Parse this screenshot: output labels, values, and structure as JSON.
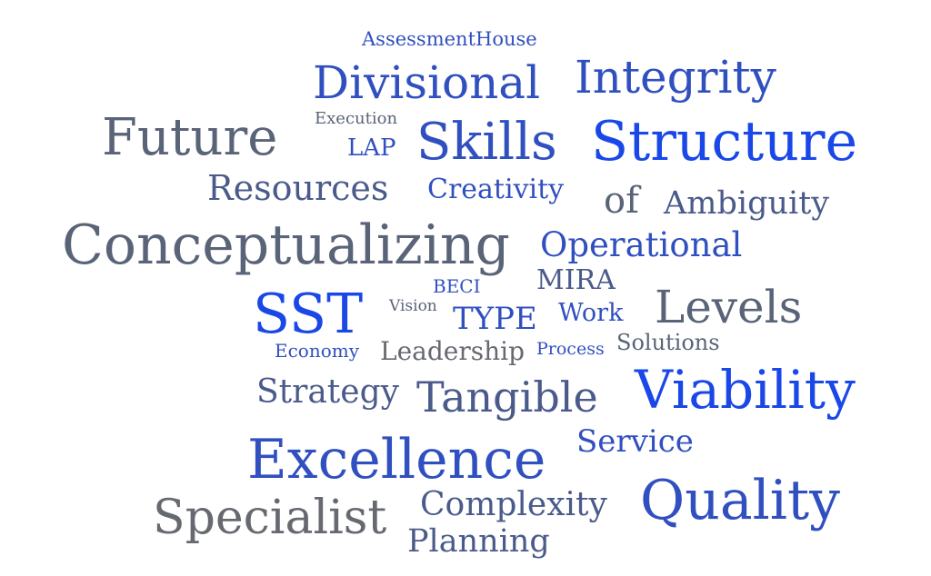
{
  "word_cloud": {
    "words": [
      {
        "text": "AssessmentHouse",
        "color": "#3150c0"
      },
      {
        "text": "Divisional",
        "color": "#3150c0"
      },
      {
        "text": "Integrity",
        "color": "#3150c0"
      },
      {
        "text": "Execution",
        "color": "#5a6478"
      },
      {
        "text": "Future",
        "color": "#5a6478"
      },
      {
        "text": "LAP",
        "color": "#3150c0"
      },
      {
        "text": "Skills",
        "color": "#3150c0"
      },
      {
        "text": "Structure",
        "color": "#1a47e8"
      },
      {
        "text": "Resources",
        "color": "#4a5a8a"
      },
      {
        "text": "Creativity",
        "color": "#3150c0"
      },
      {
        "text": "of",
        "color": "#5a6478"
      },
      {
        "text": "Ambiguity",
        "color": "#4a5a8a"
      },
      {
        "text": "Conceptualizing",
        "color": "#5a6478"
      },
      {
        "text": "Operational",
        "color": "#3150c0"
      },
      {
        "text": "BECI",
        "color": "#3150c0"
      },
      {
        "text": "MIRA",
        "color": "#4a5a8a"
      },
      {
        "text": "SST",
        "color": "#1a47e8"
      },
      {
        "text": "Vision",
        "color": "#5a6478"
      },
      {
        "text": "TYPE",
        "color": "#3150c0"
      },
      {
        "text": "Work",
        "color": "#3150c0"
      },
      {
        "text": "Levels",
        "color": "#5a6478"
      },
      {
        "text": "Economy",
        "color": "#3150c0"
      },
      {
        "text": "Leadership",
        "color": "#666a70"
      },
      {
        "text": "Process",
        "color": "#3150c0"
      },
      {
        "text": "Solutions",
        "color": "#5a6478"
      },
      {
        "text": "Strategy",
        "color": "#4a5a8a"
      },
      {
        "text": "Tangible",
        "color": "#4a5a8a"
      },
      {
        "text": "Viability",
        "color": "#1a47e8"
      },
      {
        "text": "Service",
        "color": "#3150c0"
      },
      {
        "text": "Excellence",
        "color": "#3150c0"
      },
      {
        "text": "Quality",
        "color": "#3150c0"
      },
      {
        "text": "Specialist",
        "color": "#666a70"
      },
      {
        "text": "Complexity",
        "color": "#4a5a8a"
      },
      {
        "text": "Planning",
        "color": "#4a5a8a"
      }
    ]
  }
}
